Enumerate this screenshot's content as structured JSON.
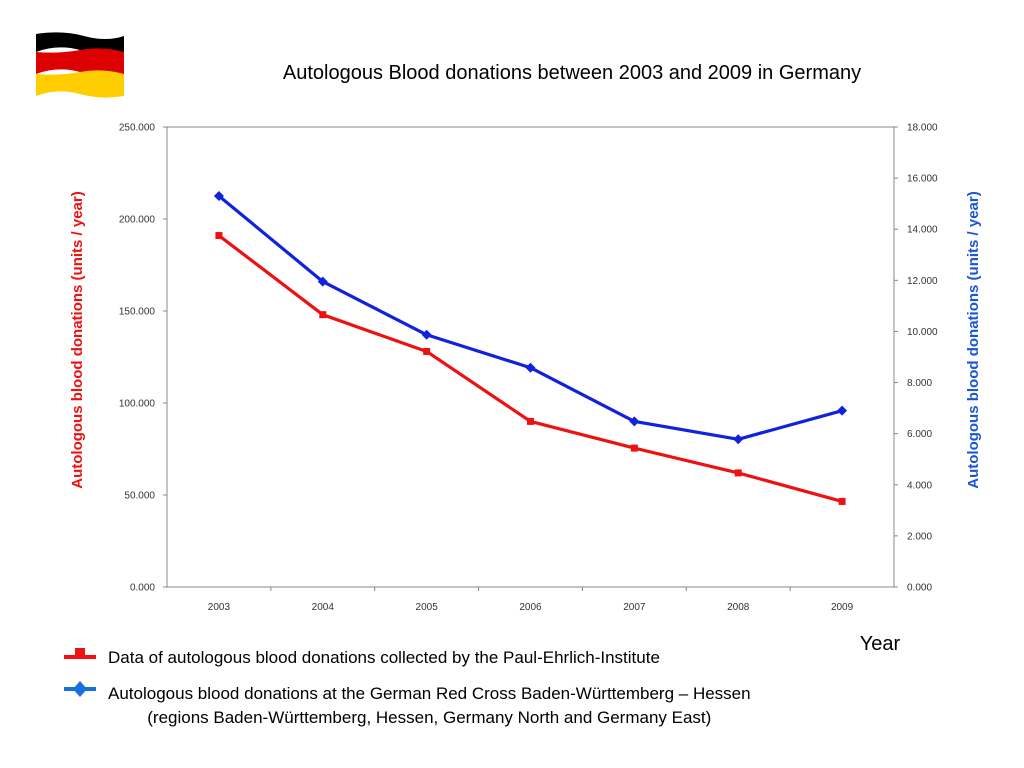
{
  "title": "Autologous Blood donations between 2003 and 2009 in Germany",
  "flag": {
    "icon": "germany-flag-icon",
    "colors": [
      "#000000",
      "#dd0000",
      "#ffce00"
    ]
  },
  "chart_data": {
    "type": "line",
    "title": "Autologous Blood donations between 2003 and 2009 in Germany",
    "xlabel": "Year",
    "ylabel_left": "Autologous blood donations (units / year)",
    "ylabel_right": "Autologous blood donations (units / year)",
    "categories": [
      "2003",
      "2004",
      "2005",
      "2006",
      "2007",
      "2008",
      "2009"
    ],
    "ylim_left": [
      0,
      250000
    ],
    "ylim_right": [
      0,
      18000
    ],
    "yticks_left": [
      "0.000",
      "50.000",
      "100.000",
      "150.000",
      "200.000",
      "250.000"
    ],
    "yticks_right": [
      "0.000",
      "2.000",
      "4.000",
      "6.000",
      "8.000",
      "10.000",
      "12.000",
      "14.000",
      "16.000",
      "18.000"
    ],
    "grid": false,
    "legend_position": "bottom",
    "series": [
      {
        "name": "Data of autologous blood donations collected by the Paul-Ehrlich-Institute",
        "axis": "left",
        "color": "#ee1111",
        "marker": "square",
        "values": [
          191000,
          148000,
          128000,
          90000,
          75500,
          62000,
          46500
        ]
      },
      {
        "name": "Autologous blood donations at the German Red Cross Baden-Württemberg – Hessen",
        "name_line2": "(regions Baden-Württemberg, Hessen, Germany North and Germany East)",
        "axis": "right",
        "color": "#1122dd",
        "marker": "diamond",
        "values": [
          15300,
          11950,
          9870,
          8580,
          6480,
          5780,
          6900
        ]
      }
    ]
  }
}
